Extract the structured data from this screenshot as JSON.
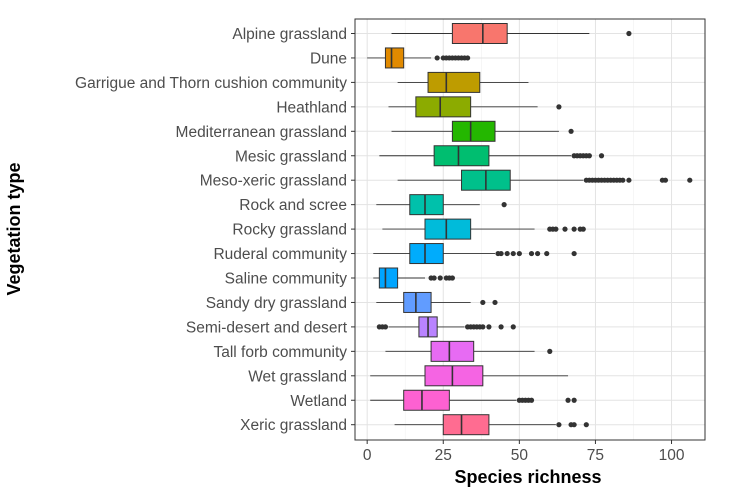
{
  "chart_data": {
    "type": "boxplot",
    "orientation": "horizontal",
    "xlabel": "Species richness",
    "ylabel": "Vegetation type",
    "xlim": [
      -4,
      111
    ],
    "x_ticks": [
      0,
      25,
      50,
      75,
      100
    ],
    "x_tick_labels": [
      "0",
      "25",
      "50",
      "75",
      "100"
    ],
    "grid": true,
    "legend": "none",
    "categories": [
      "Alpine grassland",
      "Dune",
      "Garrigue and Thorn cushion community",
      "Heathland",
      "Mediterranean grassland",
      "Mesic grassland",
      "Meso-xeric grassland",
      "Rock and scree",
      "Rocky grassland",
      "Ruderal community",
      "Saline community",
      "Sandy dry grassland",
      "Semi-desert and desert",
      "Tall forb community",
      "Wet grassland",
      "Wetland",
      "Xeric grassland"
    ],
    "boxes": [
      {
        "category": "Alpine grassland",
        "whisker_low": 8,
        "q1": 28,
        "median": 38,
        "q3": 46,
        "whisker_high": 73,
        "outliers": [
          86
        ],
        "color": "#F8766D"
      },
      {
        "category": "Dune",
        "whisker_low": 0,
        "q1": 6,
        "median": 8,
        "q3": 12,
        "whisker_high": 21,
        "outliers": [
          23,
          25,
          26,
          27,
          28,
          29,
          30,
          31,
          32,
          33
        ],
        "color": "#E18A00"
      },
      {
        "category": "Garrigue and Thorn cushion community",
        "whisker_low": 10,
        "q1": 20,
        "median": 26,
        "q3": 37,
        "whisker_high": 53,
        "outliers": [],
        "color": "#BE9C00"
      },
      {
        "category": "Heathland",
        "whisker_low": 7,
        "q1": 16,
        "median": 24,
        "q3": 34,
        "whisker_high": 56,
        "outliers": [
          63
        ],
        "color": "#8CAB00"
      },
      {
        "category": "Mediterranean grassland",
        "whisker_low": 8,
        "q1": 28,
        "median": 34,
        "q3": 42,
        "whisker_high": 63,
        "outliers": [
          67
        ],
        "color": "#24B700"
      },
      {
        "category": "Mesic grassland",
        "whisker_low": 4,
        "q1": 22,
        "median": 30,
        "q3": 40,
        "whisker_high": 67,
        "outliers": [
          68,
          69,
          70,
          71,
          72,
          73,
          77
        ],
        "color": "#00BE70"
      },
      {
        "category": "Meso-xeric grassland",
        "whisker_low": 10,
        "q1": 31,
        "median": 39,
        "q3": 47,
        "whisker_high": 71,
        "outliers": [
          72,
          73,
          74,
          75,
          76,
          77,
          78,
          79,
          80,
          81,
          82,
          83,
          84,
          86,
          97,
          98,
          106
        ],
        "color": "#00C08B"
      },
      {
        "category": "Rock and scree",
        "whisker_low": 3,
        "q1": 14,
        "median": 19,
        "q3": 25,
        "whisker_high": 37,
        "outliers": [
          45
        ],
        "color": "#00C1AB"
      },
      {
        "category": "Rocky grassland",
        "whisker_low": 5,
        "q1": 19,
        "median": 26,
        "q3": 34,
        "whisker_high": 55,
        "outliers": [
          60,
          61,
          62,
          65,
          68,
          70,
          71
        ],
        "color": "#00BBDA"
      },
      {
        "category": "Ruderal community",
        "whisker_low": 2,
        "q1": 14,
        "median": 19,
        "q3": 25,
        "whisker_high": 42,
        "outliers": [
          43,
          44,
          46,
          48,
          50,
          54,
          56,
          59,
          68
        ],
        "color": "#00ACFC"
      },
      {
        "category": "Saline community",
        "whisker_low": 2,
        "q1": 4,
        "median": 6,
        "q3": 10,
        "whisker_high": 19,
        "outliers": [
          21,
          22,
          24,
          26,
          27,
          28
        ],
        "color": "#00A5FF"
      },
      {
        "category": "Sandy dry grassland",
        "whisker_low": 3,
        "q1": 12,
        "median": 16,
        "q3": 21,
        "whisker_high": 34,
        "outliers": [
          38,
          42
        ],
        "color": "#619CFF"
      },
      {
        "category": "Semi-desert and desert",
        "whisker_low": 7,
        "q1": 17,
        "median": 20,
        "q3": 23,
        "whisker_high": 32,
        "outliers": [
          4,
          5,
          6,
          33,
          34,
          35,
          36,
          37,
          38,
          40,
          44,
          48
        ],
        "color": "#B983FF"
      },
      {
        "category": "Tall forb community",
        "whisker_low": 6,
        "q1": 21,
        "median": 27,
        "q3": 35,
        "whisker_high": 55,
        "outliers": [
          60
        ],
        "color": "#E76BF3"
      },
      {
        "category": "Wet grassland",
        "whisker_low": 1,
        "q1": 19,
        "median": 28,
        "q3": 38,
        "whisker_high": 66,
        "outliers": [],
        "color": "#F564E3"
      },
      {
        "category": "Wetland",
        "whisker_low": 1,
        "q1": 12,
        "median": 18,
        "q3": 27,
        "whisker_high": 49,
        "outliers": [
          50,
          51,
          52,
          53,
          54,
          66,
          68
        ],
        "color": "#FD61D1"
      },
      {
        "category": "Xeric grassland",
        "whisker_low": 9,
        "q1": 25,
        "median": 31,
        "q3": 40,
        "whisker_high": 62,
        "outliers": [
          63,
          67,
          68,
          72
        ],
        "color": "#FF6C91"
      }
    ]
  }
}
